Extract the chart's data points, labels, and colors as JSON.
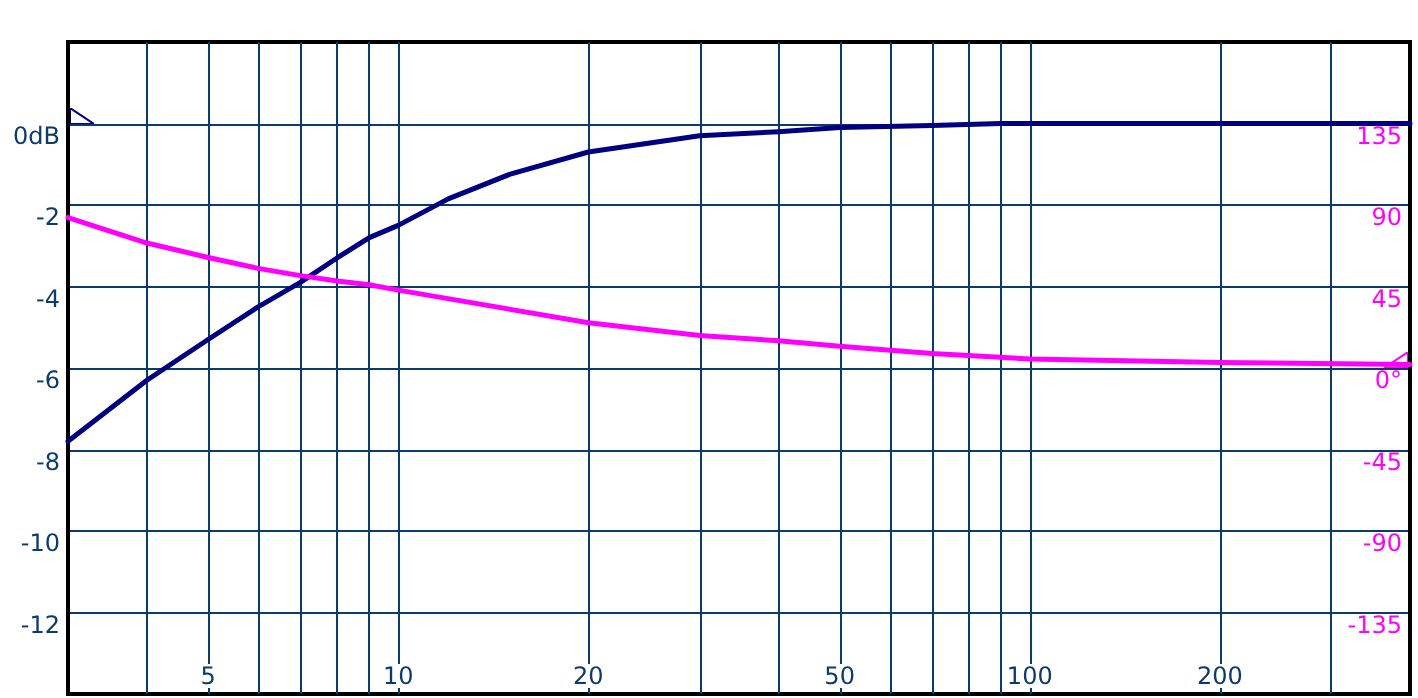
{
  "chart_data": {
    "type": "line",
    "log": "x",
    "grid": true,
    "marker": "none",
    "line_style": "solid",
    "xlim": [
      3,
      400
    ],
    "xticks": [
      {
        "value": 4,
        "label": null
      },
      5,
      {
        "value": 6,
        "label": null
      },
      {
        "value": 7,
        "label": null
      },
      {
        "value": 8,
        "label": null
      },
      {
        "value": 9,
        "label": null
      },
      10,
      20,
      {
        "value": 30,
        "label": null
      },
      {
        "value": 40,
        "label": null
      },
      50,
      {
        "value": 60,
        "label": null
      },
      {
        "value": 70,
        "label": null
      },
      {
        "value": 80,
        "label": null
      },
      {
        "value": 90,
        "label": null
      },
      100,
      200,
      {
        "value": 300,
        "label": null
      }
    ],
    "ylim": [
      -14,
      2
    ],
    "yticks": [
      -12,
      -10,
      -8,
      -6,
      -4,
      -2,
      {
        "value": 0,
        "label": "0dB"
      }
    ],
    "y2lim": [
      -180,
      180
    ],
    "y2ticks": [
      -135,
      -90,
      -45,
      {
        "value": 0,
        "label": "0°"
      },
      45,
      90,
      135
    ],
    "series": [
      {
        "color": "#000080",
        "x": [
          3,
          4,
          5,
          6,
          7,
          8,
          9,
          10,
          12,
          15,
          20,
          30,
          40,
          50,
          70,
          90,
          100,
          200,
          400
        ],
        "values": [
          -7.8,
          -6.3,
          -5.3,
          -4.5,
          -3.9,
          -3.3,
          -2.8,
          -2.5,
          -1.85,
          -1.25,
          -0.7,
          -0.3,
          -0.2,
          -0.1,
          -0.05,
          0,
          0,
          0,
          0
        ]
      },
      {
        "color": "#ff00ff",
        "axis": "y2",
        "x": [
          3,
          4,
          5,
          6,
          7,
          8,
          9,
          10,
          20,
          30,
          40,
          50,
          70,
          100,
          200,
          400
        ],
        "values": [
          83,
          69,
          61,
          55,
          51,
          48,
          46,
          43,
          25,
          18,
          15,
          12,
          8,
          5,
          3,
          2
        ]
      }
    ]
  }
}
